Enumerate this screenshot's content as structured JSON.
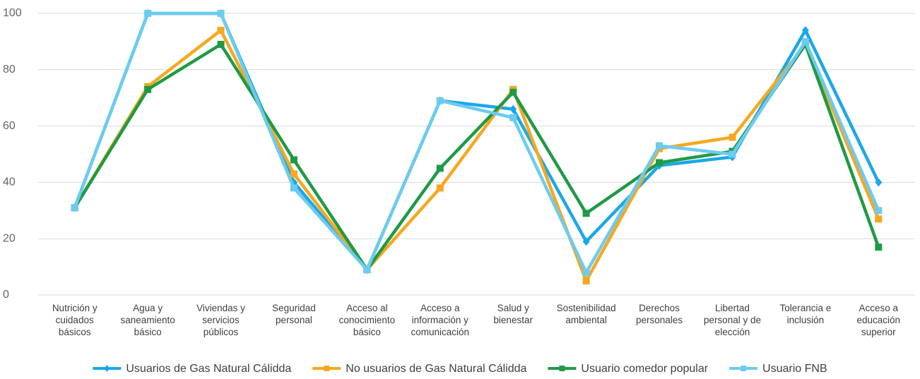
{
  "chart_data": {
    "type": "line",
    "categories": [
      "Nutrición y cuidados básicos",
      "Agua y saneamiento básico",
      "Viviendas y servicios públicos",
      "Seguridad personal",
      "Acceso al conocimiento básico",
      "Acceso a información y comunicación",
      "Salud y bienestar",
      "Sostenibilidad ambiental",
      "Derechos personales",
      "Libertad personal y de elección",
      "Tolerancia e inclusión",
      "Acceso a educación superior"
    ],
    "series": [
      {
        "name": "Usuarios de Gas Natural Cálidda",
        "color": "#1aa7e8",
        "marker": "diamond",
        "values": [
          31,
          100,
          100,
          40,
          9,
          69,
          66,
          19,
          46,
          49,
          94,
          40
        ]
      },
      {
        "name": "No usuarios de Gas Natural Cálidda",
        "color": "#f5a81f",
        "marker": "square",
        "values": [
          31,
          74,
          94,
          43,
          9,
          38,
          73,
          5,
          52,
          56,
          89,
          27
        ]
      },
      {
        "name": "Usuario comedor popular",
        "color": "#1f9a46",
        "marker": "square",
        "values": [
          31,
          73,
          89,
          48,
          9,
          45,
          72,
          29,
          47,
          51,
          89,
          17
        ]
      },
      {
        "name": "Usuario FNB",
        "color": "#6ccbf0",
        "marker": "square",
        "values": [
          31,
          100,
          100,
          38,
          9,
          69,
          63,
          8,
          53,
          50,
          90,
          30
        ]
      }
    ],
    "ylim": [
      0,
      100
    ],
    "yticks": [
      0,
      20,
      40,
      60,
      80,
      100
    ],
    "grid": true,
    "legend": "bottom"
  }
}
